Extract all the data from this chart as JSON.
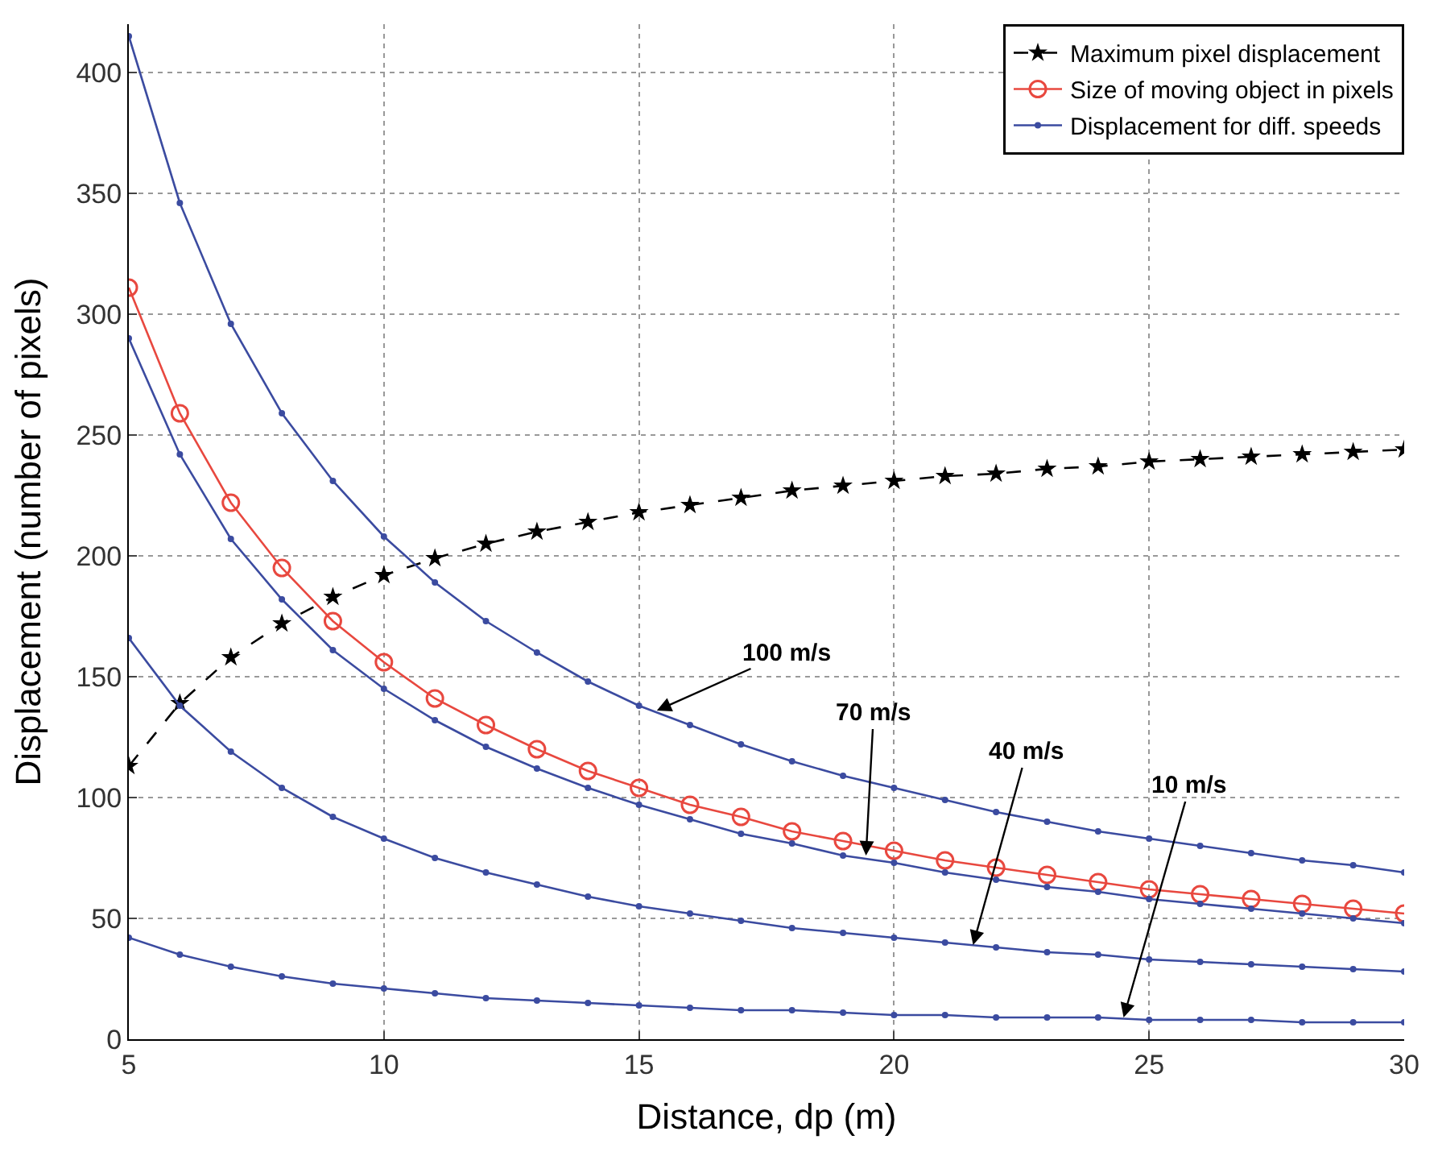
{
  "chart_data": {
    "type": "line",
    "xlabel": "Distance, dp (m)",
    "ylabel": "Displacement (number of pixels)",
    "x": [
      5,
      6,
      7,
      8,
      9,
      10,
      11,
      12,
      13,
      14,
      15,
      16,
      17,
      18,
      19,
      20,
      21,
      22,
      23,
      24,
      25,
      26,
      27,
      28,
      29,
      30
    ],
    "xlim": [
      5,
      30
    ],
    "xticks": [
      5,
      10,
      15,
      20,
      25,
      30
    ],
    "ylim": [
      0,
      420
    ],
    "yticks": [
      0,
      50,
      100,
      150,
      200,
      250,
      300,
      350,
      400
    ],
    "grid": true,
    "legend": "top right",
    "series": [
      {
        "name": "Maximum pixel displacement",
        "color": "#000000",
        "marker": "star",
        "line_style": "dashed",
        "values": [
          113,
          139,
          158,
          172,
          183,
          192,
          199,
          205,
          210,
          214,
          218,
          221,
          224,
          227,
          229,
          231,
          233,
          234,
          236,
          237,
          239,
          240,
          241,
          242,
          243,
          244
        ]
      },
      {
        "name": "Size of moving object in pixels",
        "color": "#e8483f",
        "marker": "circle",
        "line_style": "solid",
        "values": [
          311,
          259,
          222,
          195,
          173,
          156,
          141,
          130,
          120,
          111,
          104,
          97,
          92,
          86,
          82,
          78,
          74,
          71,
          68,
          65,
          62,
          60,
          58,
          56,
          54,
          52
        ]
      },
      {
        "name": "Displacement for diff. speeds",
        "color": "#3b4ba0",
        "marker": "circle",
        "line_style": "solid",
        "values": [
          415,
          346,
          296,
          259,
          231,
          208,
          189,
          173,
          160,
          148,
          138,
          130,
          122,
          115,
          109,
          104,
          99,
          94,
          90,
          86,
          83,
          80,
          77,
          74,
          72,
          69
        ]
      },
      {
        "color": "#3b4ba0",
        "marker": "circle",
        "line_style": "solid",
        "values": [
          290,
          242,
          207,
          182,
          161,
          145,
          132,
          121,
          112,
          104,
          97,
          91,
          85,
          81,
          76,
          73,
          69,
          66,
          63,
          61,
          58,
          56,
          54,
          52,
          50,
          48
        ]
      },
      {
        "color": "#3b4ba0",
        "marker": "circle",
        "line_style": "solid",
        "values": [
          166,
          138,
          119,
          104,
          92,
          83,
          75,
          69,
          64,
          59,
          55,
          52,
          49,
          46,
          44,
          42,
          40,
          38,
          36,
          35,
          33,
          32,
          31,
          30,
          29,
          28
        ]
      },
      {
        "color": "#3b4ba0",
        "marker": "circle",
        "line_style": "solid",
        "values": [
          42,
          35,
          30,
          26,
          23,
          21,
          19,
          17,
          16,
          15,
          14,
          13,
          12,
          12,
          11,
          10,
          10,
          9,
          9,
          9,
          8,
          8,
          8,
          7,
          7,
          7
        ]
      }
    ],
    "annotations": [
      {
        "text": "100 m/s",
        "x": 15.35,
        "y": 136
      },
      {
        "text": "70 m/s",
        "x": 19.45,
        "y": 76
      },
      {
        "text": "40 m/s",
        "x": 21.55,
        "y": 39
      },
      {
        "text": "10 m/s",
        "x": 24.5,
        "y": 9
      }
    ]
  }
}
